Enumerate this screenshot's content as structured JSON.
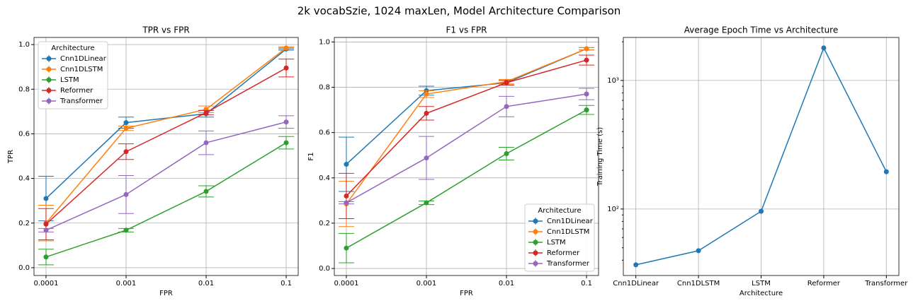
{
  "title": "2k vocabSzie, 1024 maxLen, Model Architecture Comparison",
  "chart_data": [
    {
      "type": "errorbar",
      "title": "TPR vs FPR",
      "xlabel": "FPR",
      "ylabel": "TPR",
      "categories": [
        "0.0001",
        "0.001",
        "0.01",
        "0.1"
      ],
      "ylim": [
        -0.035,
        1.032
      ],
      "yticks": [
        {
          "value": 0,
          "label": "0.0"
        },
        0.2,
        0.4,
        0.6,
        0.8,
        {
          "value": 1,
          "label": "1.0"
        }
      ],
      "grid": true,
      "legend": "upper left",
      "legend_title": "Architecture",
      "series": [
        {
          "name": "Cnn1DLinear",
          "color": "#1f77b4",
          "values": [
            0.31,
            0.65,
            0.69,
            0.98
          ],
          "errors": [
            0.1,
            0.025,
            0.015,
            0.005
          ]
        },
        {
          "name": "Cnn1DLSTM",
          "color": "#ff7f0e",
          "values": [
            0.2,
            0.625,
            0.71,
            0.985
          ],
          "errors": [
            0.08,
            0.01,
            0.015,
            0.005
          ]
        },
        {
          "name": "LSTM",
          "color": "#2ca02c",
          "values": [
            0.048,
            0.168,
            0.342,
            0.56
          ],
          "errors": [
            0.035,
            0.008,
            0.025,
            0.028
          ]
        },
        {
          "name": "Reformer",
          "color": "#d62728",
          "values": [
            0.195,
            0.52,
            0.695,
            0.895
          ],
          "errors": [
            0.07,
            0.035,
            0.01,
            0.04
          ]
        },
        {
          "name": "Transformer",
          "color": "#9467bd",
          "values": [
            0.168,
            0.328,
            0.56,
            0.653
          ],
          "errors": [
            0.008,
            0.085,
            0.053,
            0.028
          ]
        }
      ]
    },
    {
      "type": "errorbar",
      "title": "F1 vs FPR",
      "xlabel": "FPR",
      "ylabel": "F1",
      "categories": [
        "0.0001",
        "0.001",
        "0.01",
        "0.1"
      ],
      "ylim": [
        -0.031,
        1.02
      ],
      "yticks": [
        {
          "value": 0,
          "label": "0.0"
        },
        0.2,
        0.4,
        0.6,
        0.8,
        {
          "value": 1,
          "label": "1.0"
        }
      ],
      "grid": true,
      "legend": "lower right",
      "legend_title": "Architecture",
      "series": [
        {
          "name": "Cnn1DLinear",
          "color": "#1f77b4",
          "values": [
            0.46,
            0.785,
            0.82,
            0.97
          ],
          "errors": [
            0.12,
            0.02,
            0.01,
            0.005
          ]
        },
        {
          "name": "Cnn1DLSTM",
          "color": "#ff7f0e",
          "values": [
            0.285,
            0.77,
            0.825,
            0.97
          ],
          "errors": [
            0.1,
            0.015,
            0.01,
            0.005
          ]
        },
        {
          "name": "LSTM",
          "color": "#2ca02c",
          "values": [
            0.09,
            0.29,
            0.507,
            0.7
          ],
          "errors": [
            0.065,
            0.008,
            0.028,
            0.02
          ]
        },
        {
          "name": "Reformer",
          "color": "#d62728",
          "values": [
            0.32,
            0.685,
            0.82,
            0.92
          ],
          "errors": [
            0.1,
            0.03,
            0.01,
            0.022
          ]
        },
        {
          "name": "Transformer",
          "color": "#9467bd",
          "values": [
            0.29,
            0.488,
            0.715,
            0.77
          ],
          "errors": [
            0.005,
            0.095,
            0.045,
            0.025
          ]
        }
      ]
    },
    {
      "type": "line",
      "title": "Average Epoch Time vs Architecture",
      "xlabel": "Architecture",
      "ylabel": "Training Time (s)",
      "categories": [
        "Cnn1DLinear",
        "Cnn1DLSTM",
        "LSTM",
        "Reformer",
        "Transformer"
      ],
      "ylim": [
        30.4,
        2160
      ],
      "log": true,
      "yticks": [
        {
          "value": 100,
          "label": "10²"
        },
        {
          "value": 1000,
          "label": "10³"
        }
      ],
      "grid": true,
      "color": "#1f77b4",
      "values": [
        36.8,
        47.4,
        96,
        1790,
        195
      ]
    }
  ]
}
